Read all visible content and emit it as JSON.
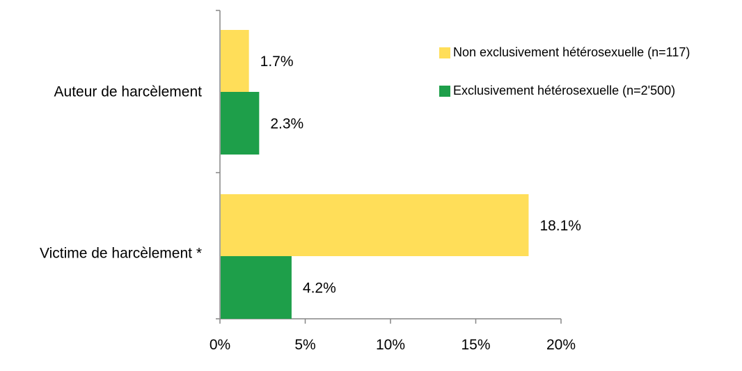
{
  "chart_data": {
    "type": "bar",
    "orientation": "horizontal",
    "categories": [
      "Auteur de harcèlement",
      "Victime de harcèlement *"
    ],
    "series": [
      {
        "name": "Non exclusivement hétérosexuelle (n=117)",
        "values": [
          1.7,
          18.1
        ],
        "labels": [
          "1.7%",
          "18.1%"
        ],
        "color": "#FFDE59"
      },
      {
        "name": "Exclusivement hétérosexuelle (n=2'500)",
        "values": [
          2.3,
          4.2
        ],
        "labels": [
          "2.3%",
          "4.2%"
        ],
        "color": "#1E9F4A"
      }
    ],
    "xlim": [
      0,
      20
    ],
    "xticks": [
      0,
      5,
      10,
      15,
      20
    ],
    "xtick_labels": [
      "0%",
      "5%",
      "10%",
      "15%",
      "20%"
    ],
    "grid": false,
    "legend_position": "top-right",
    "title": "",
    "xlabel": "",
    "ylabel": ""
  }
}
